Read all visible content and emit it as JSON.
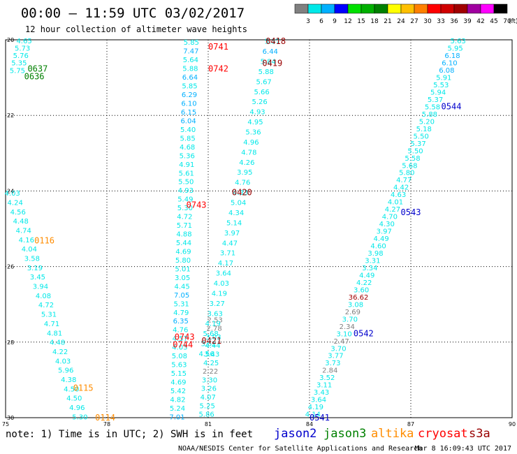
{
  "header": {
    "title": "00:00 — 11:59 UTC 03/02/2017",
    "subtitle": "12 hour collection of altimeter wave heights"
  },
  "scale": {
    "labels": [
      "3",
      "6",
      "9",
      "12",
      "15",
      "18",
      "21",
      "24",
      "27",
      "30",
      "33",
      "36",
      "39",
      "42",
      "45",
      "70"
    ],
    "unit": "(ft)",
    "colors": [
      "#808080",
      "#00e8e8",
      "#00b0ff",
      "#0000ff",
      "#00e000",
      "#00b000",
      "#008000",
      "#ffff00",
      "#ffc000",
      "#ff8000",
      "#ff0000",
      "#d00000",
      "#a00000",
      "#a000a0",
      "#ff00ff",
      "#000000"
    ]
  },
  "legend": {
    "note": "note: 1) Time is in UTC; 2) SWH is in feet",
    "satellites": [
      {
        "name": "jason2",
        "color": "#0000cc"
      },
      {
        "name": "jason3",
        "color": "#008000"
      },
      {
        "name": "altika",
        "color": "#ff8c00"
      },
      {
        "name": "cryosat",
        "color": "#ff0000"
      },
      {
        "name": "s3a",
        "color": "#990000"
      }
    ]
  },
  "footer": {
    "credit": "NOAA/NESDIS Center for Satellite Applications and Research",
    "timestamp": "Mar  8 16:09:43 UTC 2017"
  },
  "chart_data": {
    "type": "scatter",
    "xlim": [
      -75,
      -90
    ],
    "ylim": [
      20,
      30
    ],
    "xticks": [
      {
        "v": -75,
        "label": "75"
      },
      {
        "v": -78,
        "label": "78"
      },
      {
        "v": -81,
        "label": "81"
      },
      {
        "v": -84,
        "label": "84"
      },
      {
        "v": -87,
        "label": "87"
      },
      {
        "v": -90,
        "label": "90"
      }
    ],
    "yticks": [
      {
        "v": 20,
        "label": "20"
      },
      {
        "v": 22,
        "label": "22"
      },
      {
        "v": 24,
        "label": "24"
      },
      {
        "v": 26,
        "label": "26"
      },
      {
        "v": 28,
        "label": "28"
      },
      {
        "v": 30,
        "label": "30"
      }
    ],
    "grid": true,
    "tracks": [
      {
        "satellite": "jason3",
        "lon0": -75.55,
        "lat0": 20.02,
        "lon1": -75.35,
        "lat1": 20.8,
        "values": [
          "4.65",
          "5.73",
          "5.76",
          "5.35",
          "5.75"
        ]
      },
      {
        "satellite": "altika",
        "lon0": -75.2,
        "lat0": 24.05,
        "lon1": -77.2,
        "lat1": 29.97,
        "values": [
          "4.03",
          "4.24",
          "4.56",
          "4.48",
          "4.74",
          "4.16",
          "4.04",
          "3.58",
          "3.19",
          "3.45",
          "3.94",
          "4.08",
          "4.72",
          "5.31",
          "4.71",
          "4.81",
          "4.48",
          "4.22",
          "4.03",
          "5.96",
          "4.38",
          "4.50",
          "4.50",
          "4.96",
          "5.30"
        ]
      },
      {
        "satellite": "cryosat",
        "lon0": -80.5,
        "lat0": 20.06,
        "lon1": -80.08,
        "lat1": 29.97,
        "values": [
          "5.85",
          "7.47",
          "5.64",
          "5.88",
          "6.64",
          "5.85",
          "6.29",
          "6.10",
          "6.15",
          "6.04",
          "5.40",
          "5.85",
          "4.68",
          "5.36",
          "4.91",
          "5.61",
          "5.50",
          "4.93",
          "5.49",
          "5.30",
          "4.72",
          "5.71",
          "4.88",
          "5.44",
          "4.69",
          "5.80",
          "5.01",
          "3.05",
          "4.45",
          "7.05",
          "5.31",
          "4.79",
          "6.35",
          "4.76",
          "4.57",
          "4.03",
          "5.08",
          "5.63",
          "5.15",
          "4.69",
          "5.42",
          "4.82",
          "5.24",
          "7.01"
        ]
      },
      {
        "satellite": "cryosat",
        "lon0": -81.2,
        "lat0": 27.4,
        "lon1": -80.95,
        "lat1": 29.9,
        "values": [
          "2.53",
          "2.78",
          "3.03",
          "4.44",
          "3.43",
          "4.25",
          "2.22",
          "3.30",
          "3.26",
          "4.07",
          "5.25",
          "5.86"
        ]
      },
      {
        "satellite": "s3a",
        "lon0": -82.9,
        "lat0": 20.03,
        "lon1": -80.95,
        "lat1": 28.3,
        "values": [
          "5.37",
          "6.44",
          "5.84",
          "5.88",
          "5.67",
          "5.66",
          "5.26",
          "4.93",
          "4.95",
          "5.36",
          "4.96",
          "4.78",
          "4.26",
          "3.95",
          "4.76",
          "4.33",
          "5.04",
          "4.34",
          "5.14",
          "3.97",
          "4.47",
          "3.71",
          "4.17",
          "3.64",
          "4.03",
          "4.19",
          "3.27",
          "3.63",
          "4.19",
          "5.68",
          "3.51",
          "4.56"
        ]
      },
      {
        "satellite": "jason2",
        "lon0": -88.4,
        "lat0": 20.02,
        "lon1": -84.1,
        "lat1": 29.9,
        "values": [
          "5.63",
          "5.95",
          "6.18",
          "6.10",
          "6.08",
          "5.91",
          "5.53",
          "5.94",
          "5.37",
          "5.58",
          "5.88",
          "5.20",
          "5.18",
          "5.50",
          "5.37",
          "5.50",
          "5.58",
          "5.68",
          "5.80",
          "4.77",
          "4.42",
          "4.63",
          "4.01",
          "4.27",
          "4.70",
          "4.30",
          "3.97",
          "4.49",
          "4.60",
          "3.98",
          "3.31",
          "3.34",
          "4.49",
          "4.22",
          "3.60",
          "36.62",
          "3.08",
          "2.69",
          "3.70",
          "2.34",
          "3.10",
          "2.47",
          "3.70",
          "3.77",
          "3.73",
          "2.84",
          "3.52",
          "3.11",
          "3.43",
          "3.64",
          "4.19",
          "4.14"
        ]
      }
    ],
    "time_labels": [
      {
        "text": "0418",
        "satellite": "s3a",
        "lon": -83.0,
        "lat": 20.02
      },
      {
        "text": "0419",
        "satellite": "s3a",
        "lon": -82.9,
        "lat": 20.6
      },
      {
        "text": "0420",
        "satellite": "s3a",
        "lon": -82.0,
        "lat": 24.02
      },
      {
        "text": "0421",
        "satellite": "s3a",
        "lon": -81.1,
        "lat": 27.95
      },
      {
        "text": "0741",
        "satellite": "cryosat",
        "lon": -81.3,
        "lat": 20.17
      },
      {
        "text": "0742",
        "satellite": "cryosat",
        "lon": -81.3,
        "lat": 20.75
      },
      {
        "text": "0743",
        "satellite": "cryosat",
        "lon": -80.65,
        "lat": 24.35
      },
      {
        "text": "0743",
        "satellite": "cryosat",
        "lon": -80.3,
        "lat": 27.85
      },
      {
        "text": "0744",
        "satellite": "cryosat",
        "lon": -80.25,
        "lat": 28.05
      },
      {
        "text": "0541",
        "satellite": "jason2",
        "lon": -84.3,
        "lat": 29.98
      },
      {
        "text": "0542",
        "satellite": "jason2",
        "lon": -85.6,
        "lat": 27.75
      },
      {
        "text": "0543",
        "satellite": "jason2",
        "lon": -87.0,
        "lat": 24.55
      },
      {
        "text": "0544",
        "satellite": "jason2",
        "lon": -88.2,
        "lat": 21.75
      },
      {
        "text": "0637",
        "satellite": "jason3",
        "lon": -75.95,
        "lat": 20.75
      },
      {
        "text": "0636",
        "satellite": "jason3",
        "lon": -75.85,
        "lat": 20.95
      },
      {
        "text": "0116",
        "satellite": "altika",
        "lon": -76.15,
        "lat": 25.3
      },
      {
        "text": "0115",
        "satellite": "altika",
        "lon": -77.3,
        "lat": 29.2
      },
      {
        "text": "0114",
        "satellite": "altika",
        "lon": -77.95,
        "lat": 29.98
      }
    ]
  }
}
